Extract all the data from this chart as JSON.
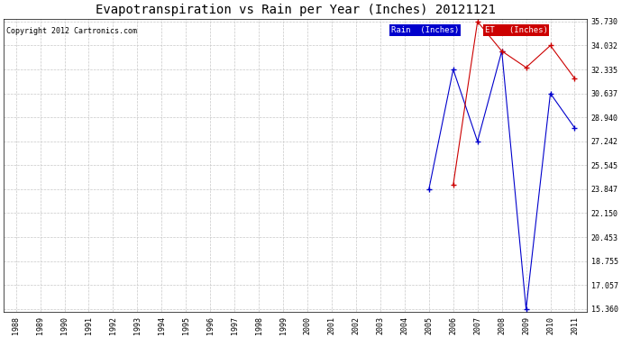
{
  "title": "Evapotranspiration vs Rain per Year (Inches) 20121121",
  "copyright": "Copyright 2012 Cartronics.com",
  "background_color": "#ffffff",
  "plot_background": "#ffffff",
  "grid_color": "#c8c8c8",
  "x_years": [
    1988,
    1989,
    1990,
    1991,
    1992,
    1993,
    1994,
    1995,
    1996,
    1997,
    1998,
    1999,
    2000,
    2001,
    2002,
    2003,
    2004,
    2005,
    2006,
    2007,
    2008,
    2009,
    2010,
    2011
  ],
  "rain_years": [
    2005,
    2006,
    2007,
    2008,
    2009,
    2010,
    2011
  ],
  "rain_values": [
    23.847,
    32.335,
    27.242,
    33.638,
    15.36,
    30.637,
    28.194
  ],
  "et_years": [
    2006,
    2007,
    2008,
    2009,
    2010,
    2011
  ],
  "et_values": [
    24.144,
    35.73,
    33.638,
    32.474,
    34.032,
    31.699
  ],
  "rain_color": "#0000cc",
  "et_color": "#cc0000",
  "rain_label": "Rain  (Inches)",
  "et_label": "ET   (Inches)",
  "ylim_min": 15.36,
  "ylim_max": 35.73,
  "ytick_values": [
    35.73,
    34.032,
    32.335,
    30.637,
    28.94,
    27.242,
    25.545,
    23.847,
    22.15,
    20.453,
    18.755,
    17.057,
    15.36
  ],
  "title_fontsize": 10,
  "copyright_fontsize": 6,
  "tick_fontsize": 6,
  "legend_fontsize": 6.5
}
